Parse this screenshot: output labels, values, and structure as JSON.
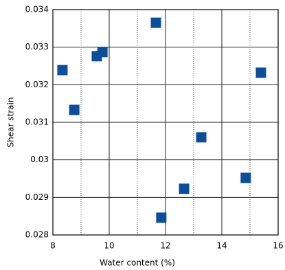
{
  "chart_data": {
    "type": "scatter",
    "xlabel": "Water content (%)",
    "ylabel": "Shear strain",
    "xlim": [
      8,
      16
    ],
    "xticks": [
      8,
      10,
      12,
      14,
      16
    ],
    "xminor": [
      9,
      11,
      13,
      15
    ],
    "ylim": [
      0.028,
      0.034
    ],
    "yticks": [
      0.028,
      0.029,
      0.03,
      0.031,
      0.032,
      0.033,
      0.034
    ],
    "grid": true,
    "color": "#0b4f9c",
    "x": [
      8.34,
      8.76,
      9.56,
      9.76,
      11.66,
      11.85,
      12.66,
      13.27,
      14.85,
      15.39
    ],
    "values": [
      0.03239,
      0.03133,
      0.03276,
      0.03287,
      0.03365,
      0.02846,
      0.02923,
      0.0306,
      0.02952,
      0.03232
    ]
  }
}
